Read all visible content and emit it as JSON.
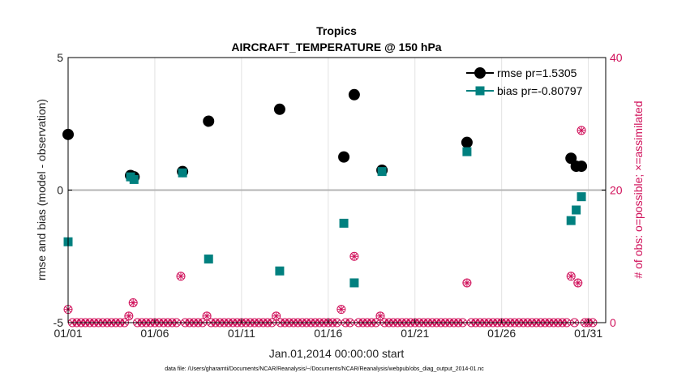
{
  "chart_data": {
    "type": "scatter",
    "title": "Tropics",
    "subtitle": "AIRCRAFT_TEMPERATURE @ 150 hPa",
    "xlabel": "Jan.01,2014 00:00:00 start",
    "ylabel": "rmse and bias (model - observation)",
    "ylabel_right": "# of obs: o=possible; ×=assimilated",
    "xlim": [
      1,
      32
    ],
    "ylim": [
      -5,
      5
    ],
    "ylim_right": [
      0,
      40
    ],
    "x_ticks": [
      1,
      6,
      11,
      16,
      21,
      26,
      31
    ],
    "x_tick_labels": [
      "01/01",
      "01/06",
      "01/11",
      "01/16",
      "01/21",
      "01/26",
      "01/31"
    ],
    "y_ticks": [
      -5,
      0,
      5
    ],
    "y_tick_labels": [
      "-5",
      "0",
      "5"
    ],
    "y_right_ticks": [
      0,
      20,
      40
    ],
    "y_right_tick_labels": [
      "0",
      "20",
      "40"
    ],
    "grid": true,
    "legend_position": "top-right",
    "colors": {
      "rmse": "#000000",
      "bias": "#00807f",
      "obs": "#d0105a",
      "zero_line": "#b4b4b4"
    },
    "series": [
      {
        "name": "rmse pr=1.5305",
        "points": [
          [
            1.0,
            2.1
          ],
          [
            4.6,
            0.55
          ],
          [
            4.8,
            0.5
          ],
          [
            7.6,
            0.7
          ],
          [
            9.1,
            2.6
          ],
          [
            13.2,
            3.05
          ],
          [
            16.9,
            1.25
          ],
          [
            17.5,
            3.6
          ],
          [
            19.1,
            0.75
          ],
          [
            24.0,
            1.8
          ],
          [
            30.0,
            1.2
          ],
          [
            30.3,
            0.9
          ],
          [
            30.6,
            0.9
          ]
        ]
      },
      {
        "name": "bias pr=-0.80797",
        "points": [
          [
            1.0,
            -1.95
          ],
          [
            4.6,
            0.5
          ],
          [
            4.8,
            0.4
          ],
          [
            7.6,
            0.65
          ],
          [
            9.1,
            -2.6
          ],
          [
            13.2,
            -3.05
          ],
          [
            16.9,
            -1.25
          ],
          [
            17.5,
            -3.5
          ],
          [
            19.1,
            0.7
          ],
          [
            24.0,
            1.45
          ],
          [
            30.0,
            -1.15
          ],
          [
            30.3,
            -0.75
          ],
          [
            30.6,
            -0.25
          ]
        ]
      }
    ],
    "obs_possible": [
      [
        1.0,
        2
      ],
      [
        1.25,
        0
      ],
      [
        1.5,
        0
      ],
      [
        1.75,
        0
      ],
      [
        2.0,
        0
      ],
      [
        2.25,
        0
      ],
      [
        2.5,
        0
      ],
      [
        2.75,
        0
      ],
      [
        3.0,
        0
      ],
      [
        3.25,
        0
      ],
      [
        3.5,
        0
      ],
      [
        3.75,
        0
      ],
      [
        4.0,
        0
      ],
      [
        4.25,
        0
      ],
      [
        4.5,
        1
      ],
      [
        4.75,
        3
      ],
      [
        5.0,
        0
      ],
      [
        5.25,
        0
      ],
      [
        5.5,
        0
      ],
      [
        5.75,
        0
      ],
      [
        6.0,
        0
      ],
      [
        6.25,
        0
      ],
      [
        6.5,
        0
      ],
      [
        6.75,
        0
      ],
      [
        7.0,
        0
      ],
      [
        7.25,
        0
      ],
      [
        7.5,
        7
      ],
      [
        7.75,
        0
      ],
      [
        8.0,
        0
      ],
      [
        8.25,
        0
      ],
      [
        8.5,
        0
      ],
      [
        8.75,
        0
      ],
      [
        9.0,
        1
      ],
      [
        9.25,
        0
      ],
      [
        9.5,
        0
      ],
      [
        9.75,
        0
      ],
      [
        10.0,
        0
      ],
      [
        10.25,
        0
      ],
      [
        10.5,
        0
      ],
      [
        10.75,
        0
      ],
      [
        11.0,
        0
      ],
      [
        11.25,
        0
      ],
      [
        11.5,
        0
      ],
      [
        11.75,
        0
      ],
      [
        12.0,
        0
      ],
      [
        12.25,
        0
      ],
      [
        12.5,
        0
      ],
      [
        12.75,
        0
      ],
      [
        13.0,
        1
      ],
      [
        13.25,
        0
      ],
      [
        13.5,
        0
      ],
      [
        13.75,
        0
      ],
      [
        14.0,
        0
      ],
      [
        14.25,
        0
      ],
      [
        14.5,
        0
      ],
      [
        14.75,
        0
      ],
      [
        15.0,
        0
      ],
      [
        15.25,
        0
      ],
      [
        15.5,
        0
      ],
      [
        15.75,
        0
      ],
      [
        16.0,
        0
      ],
      [
        16.25,
        0
      ],
      [
        16.5,
        0
      ],
      [
        16.75,
        2
      ],
      [
        17.0,
        0
      ],
      [
        17.25,
        0
      ],
      [
        17.5,
        10
      ],
      [
        17.75,
        0
      ],
      [
        18.0,
        0
      ],
      [
        18.25,
        0
      ],
      [
        18.5,
        0
      ],
      [
        18.75,
        0
      ],
      [
        19.0,
        1
      ],
      [
        19.25,
        0
      ],
      [
        19.5,
        0
      ],
      [
        19.75,
        0
      ],
      [
        20.0,
        0
      ],
      [
        20.25,
        0
      ],
      [
        20.5,
        0
      ],
      [
        20.75,
        0
      ],
      [
        21.0,
        0
      ],
      [
        21.25,
        0
      ],
      [
        21.5,
        0
      ],
      [
        21.75,
        0
      ],
      [
        22.0,
        0
      ],
      [
        22.25,
        0
      ],
      [
        22.5,
        0
      ],
      [
        22.75,
        0
      ],
      [
        23.0,
        0
      ],
      [
        23.25,
        0
      ],
      [
        23.5,
        0
      ],
      [
        23.75,
        0
      ],
      [
        24.0,
        6
      ],
      [
        24.25,
        0
      ],
      [
        24.5,
        0
      ],
      [
        24.75,
        0
      ],
      [
        25.0,
        0
      ],
      [
        25.25,
        0
      ],
      [
        25.5,
        0
      ],
      [
        25.75,
        0
      ],
      [
        26.0,
        0
      ],
      [
        26.25,
        0
      ],
      [
        26.5,
        0
      ],
      [
        26.75,
        0
      ],
      [
        27.0,
        0
      ],
      [
        27.25,
        0
      ],
      [
        27.5,
        0
      ],
      [
        27.75,
        0
      ],
      [
        28.0,
        0
      ],
      [
        28.25,
        0
      ],
      [
        28.5,
        0
      ],
      [
        28.75,
        0
      ],
      [
        29.0,
        0
      ],
      [
        29.25,
        0
      ],
      [
        29.5,
        0
      ],
      [
        29.75,
        0
      ],
      [
        30.0,
        7
      ],
      [
        30.2,
        0
      ],
      [
        30.4,
        6
      ],
      [
        30.6,
        29
      ],
      [
        30.8,
        0
      ],
      [
        31.0,
        0
      ],
      [
        31.25,
        0
      ]
    ],
    "footer": "data file: /Users/gharamti/Documents/NCAR/Reanalysis/~/Documents/NCAR/Reanalysis/webpub/obs_diag_output_2014-01.nc"
  }
}
